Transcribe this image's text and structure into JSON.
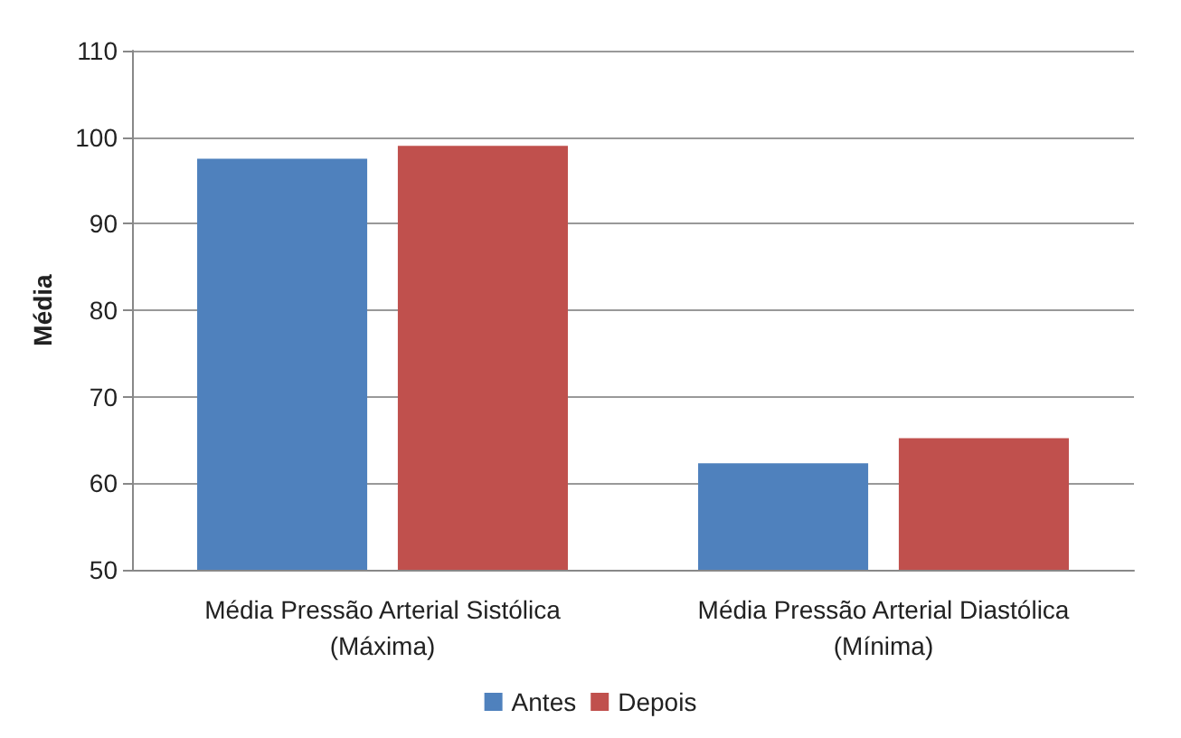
{
  "chart_data": {
    "type": "bar",
    "ylabel": "Média",
    "categories": [
      "Média Pressão Arterial Sistólica\n(Máxima)",
      "Média Pressão Arterial Diastólica\n(Mínima)"
    ],
    "series": [
      {
        "name": "Antes",
        "color": "#4f81bd",
        "values": [
          97.5,
          62.3
        ]
      },
      {
        "name": "Depois",
        "color": "#c0504d",
        "values": [
          99,
          65.2
        ]
      }
    ],
    "ylim": [
      50,
      110
    ],
    "yticks": [
      50,
      60,
      70,
      80,
      90,
      100,
      110
    ],
    "grid": "y",
    "legend": "bottom"
  }
}
